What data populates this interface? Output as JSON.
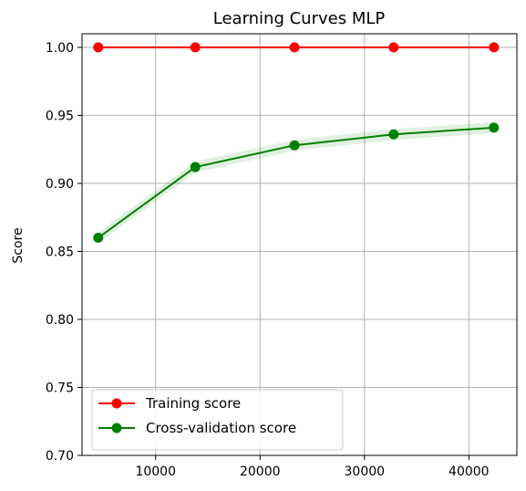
{
  "chart_data": {
    "type": "line",
    "title": "Learning Curves MLP",
    "xlabel": "",
    "ylabel": "Score",
    "xlim": [
      2950,
      44600
    ],
    "ylim": [
      0.7,
      1.01
    ],
    "x_ticks": [
      10000,
      20000,
      30000,
      40000
    ],
    "x_tick_labels": [
      "10000",
      "20000",
      "30000",
      "40000"
    ],
    "y_ticks": [
      0.7,
      0.75,
      0.8,
      0.85,
      0.9,
      0.95,
      1.0
    ],
    "y_tick_labels": [
      "0.70",
      "0.75",
      "0.80",
      "0.85",
      "0.90",
      "0.95",
      "1.00"
    ],
    "grid": true,
    "legend_position": "lower-left",
    "x": [
      4500,
      13800,
      23300,
      32800,
      42400
    ],
    "series": [
      {
        "name": "Training score",
        "color": "#ff0000",
        "values": [
          1.0,
          1.0,
          1.0,
          1.0,
          1.0
        ],
        "band": [
          0.0005,
          0.0005,
          0.0005,
          0.0005,
          0.0005
        ]
      },
      {
        "name": "Cross-validation score",
        "color": "#008000",
        "values": [
          0.86,
          0.912,
          0.928,
          0.936,
          0.941
        ],
        "band": [
          0.004,
          0.004,
          0.004,
          0.004,
          0.004
        ]
      }
    ]
  }
}
